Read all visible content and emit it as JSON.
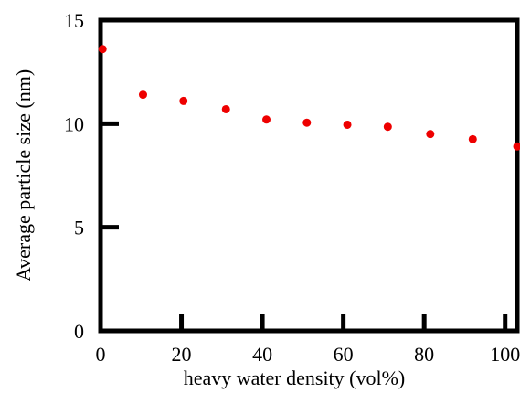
{
  "chart_data": {
    "type": "scatter",
    "xlabel": "heavy water density (vol%)",
    "ylabel": "Average particle size (nm)",
    "xlim": [
      0,
      103
    ],
    "ylim": [
      0,
      15
    ],
    "xticks": [
      0,
      20,
      40,
      60,
      80,
      100
    ],
    "yticks": [
      0,
      5,
      10,
      15
    ],
    "grid": false,
    "legend": "none",
    "marker_color": "#ee0000",
    "series": [
      {
        "x": [
          0.5,
          10.5,
          20.5,
          31,
          41,
          51,
          61,
          71,
          81.5,
          92,
          103
        ],
        "y": [
          13.6,
          11.4,
          11.1,
          10.7,
          10.2,
          10.05,
          9.95,
          9.85,
          9.5,
          9.25,
          8.9
        ]
      }
    ]
  }
}
